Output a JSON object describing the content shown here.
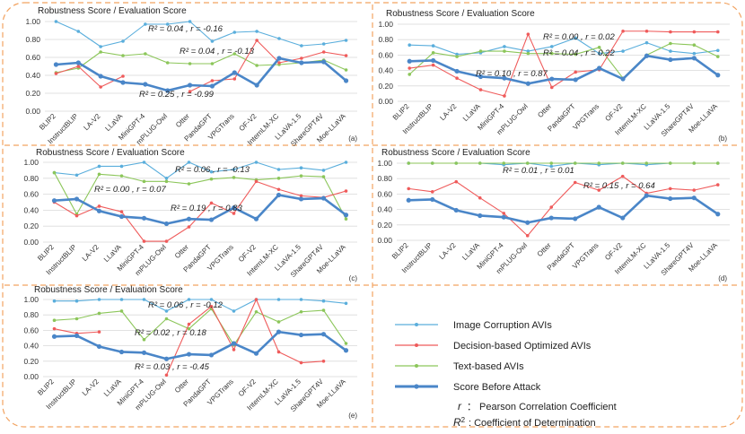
{
  "y_title": "Robustness Score / Evaluation Score",
  "categories": [
    "BLIP2",
    "InstructBLIP",
    "LA-V2",
    "LLaVA",
    "MiniGPT-4",
    "mPLUG-Owl",
    "Otter",
    "PandaGPT",
    "VPGTrans",
    "OF-V2",
    "InternLM-XC",
    "LLaVA-1.5",
    "ShareGPT4V",
    "Moe-LLaVA"
  ],
  "colors": {
    "image": "#5aaedc",
    "decision": "#ef5b5b",
    "text": "#8cc65a",
    "base": "#4a86c8",
    "border": "#f2a361"
  },
  "legend": {
    "image": "Image Corruption AVIs",
    "decision": "Decision-based Optimized AVIs",
    "text": "Text-based AVIs",
    "base": "Score Before Attack",
    "r_symbol": "r",
    "r_desc": "： Pearson Correlation Coefficient",
    "r2_symbol": "R",
    "r2_desc": ": Coefficient of Determination"
  },
  "chart_data": [
    {
      "id": "a",
      "panel_label": "(a)",
      "type": "line",
      "title": "Robustness Score / Evaluation Score",
      "ylim": [
        0,
        1
      ],
      "yticks": [
        "0.00",
        "0.20",
        "0.40",
        "0.60",
        "0.80",
        "1.00"
      ],
      "series": [
        {
          "name": "Image Corruption AVIs",
          "key": "image",
          "values": [
            1.0,
            0.89,
            0.72,
            0.78,
            0.97,
            0.97,
            1.0,
            0.78,
            0.88,
            0.89,
            0.81,
            0.73,
            0.75,
            0.79
          ]
        },
        {
          "name": "Decision-based Optimized AVIs",
          "key": "decision",
          "values": [
            0.42,
            0.5,
            0.27,
            0.39,
            null,
            null,
            0.22,
            0.34,
            0.36,
            0.79,
            0.54,
            0.59,
            0.66,
            0.62
          ]
        },
        {
          "name": "Text-based AVIs",
          "key": "text",
          "values": [
            0.43,
            0.48,
            0.66,
            0.62,
            0.64,
            0.54,
            0.53,
            0.53,
            0.64,
            0.51,
            0.52,
            0.54,
            0.57,
            0.46
          ]
        },
        {
          "name": "Score Before Attack",
          "key": "base",
          "values": [
            0.52,
            0.54,
            0.39,
            0.32,
            0.3,
            0.23,
            0.29,
            0.28,
            0.43,
            0.29,
            0.59,
            0.54,
            0.55,
            0.34
          ]
        }
      ],
      "annotations": [
        "R² = 0.04 , r = -0.16",
        "R² = 0.04 , r = -0.13",
        "R² = 0.25 , r = -0.99"
      ]
    },
    {
      "id": "b",
      "panel_label": "(b)",
      "type": "line",
      "title": "Robustness Score / Evaluation Score",
      "ylim": [
        0,
        1
      ],
      "yticks": [
        "0.00",
        "0.20",
        "0.40",
        "0.60",
        "0.80",
        "1.00"
      ],
      "series": [
        {
          "name": "Image Corruption AVIs",
          "key": "image",
          "values": [
            0.73,
            0.72,
            0.61,
            0.63,
            0.71,
            0.65,
            0.71,
            0.82,
            0.62,
            0.65,
            0.76,
            0.65,
            0.62,
            0.66
          ]
        },
        {
          "name": "Decision-based Optimized AVIs",
          "key": "decision",
          "values": [
            0.43,
            0.47,
            0.3,
            0.15,
            0.07,
            0.87,
            0.18,
            0.38,
            0.41,
            0.91,
            0.91,
            0.9,
            0.9,
            0.9
          ]
        },
        {
          "name": "Text-based AVIs",
          "key": "text",
          "values": [
            0.35,
            0.63,
            0.58,
            0.65,
            0.65,
            0.62,
            0.62,
            0.61,
            0.7,
            0.3,
            0.6,
            0.75,
            0.73,
            0.58
          ]
        },
        {
          "name": "Score Before Attack",
          "key": "base",
          "values": [
            0.52,
            0.53,
            0.39,
            0.32,
            0.3,
            0.23,
            0.29,
            0.28,
            0.43,
            0.29,
            0.59,
            0.54,
            0.56,
            0.34
          ]
        }
      ],
      "annotations": [
        "R² = 0.00 , r = 0.02",
        "R² = 0.04 , r = 0.22",
        "R² = 0.10 , r = 0.87"
      ]
    },
    {
      "id": "c",
      "panel_label": "(c)",
      "type": "line",
      "title": "Robustness Score / Evaluation Score",
      "ylim": [
        0,
        1
      ],
      "yticks": [
        "0.00",
        "0.20",
        "0.40",
        "0.60",
        "0.80",
        "1.00"
      ],
      "series": [
        {
          "name": "Image Corruption AVIs",
          "key": "image",
          "values": [
            0.87,
            0.84,
            0.95,
            0.95,
            1.0,
            0.8,
            1.0,
            0.88,
            0.91,
            1.0,
            0.91,
            0.93,
            0.9,
            1.0
          ]
        },
        {
          "name": "Decision-based Optimized AVIs",
          "key": "decision",
          "values": [
            0.5,
            0.33,
            0.45,
            0.38,
            0.01,
            0.01,
            0.19,
            0.49,
            0.36,
            0.76,
            0.66,
            0.58,
            0.56,
            0.64
          ]
        },
        {
          "name": "Text-based AVIs",
          "key": "text",
          "values": [
            0.87,
            0.35,
            0.85,
            0.83,
            0.76,
            0.76,
            0.73,
            0.79,
            0.81,
            0.78,
            0.8,
            0.83,
            0.82,
            0.29
          ]
        },
        {
          "name": "Score Before Attack",
          "key": "base",
          "values": [
            0.52,
            0.54,
            0.39,
            0.32,
            0.3,
            0.23,
            0.29,
            0.28,
            0.43,
            0.29,
            0.59,
            0.54,
            0.55,
            0.34
          ]
        }
      ],
      "annotations": [
        "R² = 0.06 , r = -0.13",
        "R² = 0.00 , r = 0.07",
        "R² = 0.19 , r = 0.83"
      ]
    },
    {
      "id": "d",
      "panel_label": "(d)",
      "type": "line",
      "title": "Robustness Score / Evaluation Score",
      "ylim": [
        0,
        1
      ],
      "yticks": [
        "0.00",
        "0.20",
        "0.40",
        "0.60",
        "0.80",
        "1.00"
      ],
      "series": [
        {
          "name": "Image Corruption AVIs",
          "key": "image",
          "values": [
            1.0,
            1.0,
            1.0,
            1.0,
            0.98,
            1.0,
            0.96,
            1.0,
            0.98,
            1.0,
            0.98,
            1.0,
            1.0,
            1.0
          ]
        },
        {
          "name": "Decision-based Optimized AVIs",
          "key": "decision",
          "values": [
            0.67,
            0.63,
            0.76,
            0.55,
            0.35,
            0.06,
            0.43,
            0.75,
            0.65,
            0.83,
            0.61,
            0.67,
            0.65,
            0.72
          ]
        },
        {
          "name": "Text-based AVIs",
          "key": "text",
          "values": [
            1.0,
            1.0,
            1.0,
            1.0,
            1.0,
            1.0,
            1.0,
            1.0,
            1.0,
            1.0,
            1.0,
            1.0,
            1.0,
            1.0
          ]
        },
        {
          "name": "Score Before Attack",
          "key": "base",
          "values": [
            0.52,
            0.53,
            0.39,
            0.32,
            0.3,
            0.23,
            0.29,
            0.28,
            0.43,
            0.29,
            0.58,
            0.54,
            0.55,
            0.34
          ]
        }
      ],
      "annotations": [
        "R² = 0.01 , r = 0.01",
        "R² = 0.15 , r = 0.64"
      ]
    },
    {
      "id": "e",
      "panel_label": "(e)",
      "type": "line",
      "title": "Robustness Score / Evaluation Score",
      "ylim": [
        0,
        1
      ],
      "yticks": [
        "0.00",
        "0.20",
        "0.40",
        "0.60",
        "0.80",
        "1.00"
      ],
      "series": [
        {
          "name": "Image Corruption AVIs",
          "key": "image",
          "values": [
            0.98,
            0.98,
            1.0,
            1.0,
            1.0,
            0.85,
            1.0,
            1.0,
            0.85,
            1.0,
            1.0,
            1.0,
            0.98,
            0.95
          ]
        },
        {
          "name": "Decision-based Optimized AVIs",
          "key": "decision",
          "values": [
            0.62,
            0.56,
            0.58,
            null,
            null,
            0.02,
            0.68,
            0.91,
            0.35,
            1.0,
            0.32,
            0.18,
            0.2,
            null
          ]
        },
        {
          "name": "Text-based AVIs",
          "key": "text",
          "values": [
            0.73,
            0.75,
            0.82,
            0.85,
            0.48,
            0.75,
            0.62,
            0.88,
            0.41,
            0.84,
            0.71,
            0.84,
            0.86,
            0.43
          ]
        },
        {
          "name": "Score Before Attack",
          "key": "base",
          "values": [
            0.52,
            0.53,
            0.39,
            0.32,
            0.31,
            0.23,
            0.29,
            0.28,
            0.43,
            0.3,
            0.58,
            0.54,
            0.55,
            0.34
          ]
        }
      ],
      "annotations": [
        "R² = 0.06 , r = -0.12",
        "R² = 0.02 , r = 0.18",
        "R² = 0.03 , r = -0.45"
      ]
    }
  ]
}
